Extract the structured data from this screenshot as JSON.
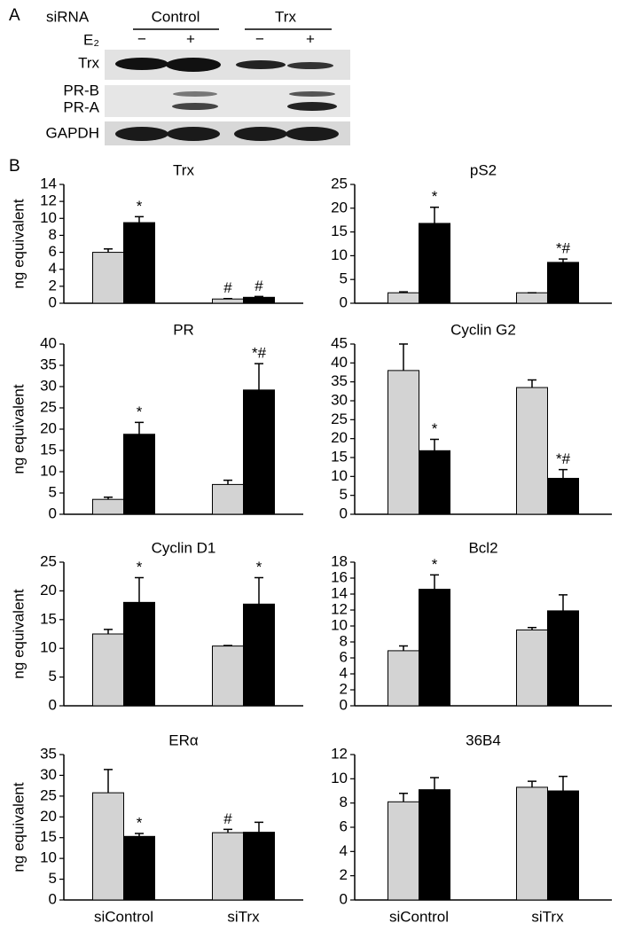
{
  "panels": [
    "A",
    "B"
  ],
  "blot": {
    "row_header": "siRNA",
    "groups": [
      "Control",
      "Trx"
    ],
    "treatment": "E₂",
    "signs": [
      "−",
      "+",
      "−",
      "+"
    ],
    "rows": [
      "Trx",
      "PR-B",
      "PR-A",
      "GAPDH"
    ]
  },
  "chart_data": [
    {
      "type": "bar",
      "title": "Trx",
      "ylabel": "ng equivalent",
      "categories": [
        null,
        null
      ],
      "ylim": [
        0,
        14
      ],
      "yticks": [
        0,
        2,
        4,
        6,
        8,
        10,
        12,
        14
      ],
      "series": [
        {
          "color": "#d3d3d3",
          "values": [
            6.0,
            0.5
          ],
          "errors": [
            0.4,
            0.05
          ],
          "annotations": [
            null,
            "#"
          ]
        },
        {
          "color": "#000000",
          "values": [
            9.5,
            0.7
          ],
          "errors": [
            0.7,
            0.1
          ],
          "annotations": [
            "*",
            "#"
          ]
        }
      ]
    },
    {
      "type": "bar",
      "title": "pS2",
      "categories": [
        null,
        null
      ],
      "ylim": [
        0,
        25
      ],
      "yticks": [
        0,
        5,
        10,
        15,
        20,
        25
      ],
      "series": [
        {
          "color": "#d3d3d3",
          "values": [
            2.2,
            2.2
          ],
          "errors": [
            0.2,
            0
          ],
          "annotations": [
            null,
            null
          ]
        },
        {
          "color": "#000000",
          "values": [
            16.8,
            8.6
          ],
          "errors": [
            3.4,
            0.7
          ],
          "annotations": [
            "*",
            "*#"
          ]
        }
      ]
    },
    {
      "type": "bar",
      "title": "PR",
      "ylabel": "ng equivalent",
      "categories": [
        null,
        null
      ],
      "ylim": [
        0,
        40
      ],
      "yticks": [
        0,
        5,
        10,
        15,
        20,
        25,
        30,
        35,
        40
      ],
      "series": [
        {
          "color": "#d3d3d3",
          "values": [
            3.5,
            7.0
          ],
          "errors": [
            0.5,
            1.0
          ],
          "annotations": [
            null,
            null
          ]
        },
        {
          "color": "#000000",
          "values": [
            18.8,
            29.2
          ],
          "errors": [
            2.8,
            6.2
          ],
          "annotations": [
            "*",
            "*#"
          ]
        }
      ]
    },
    {
      "type": "bar",
      "title": "Cyclin G2",
      "categories": [
        null,
        null
      ],
      "ylim": [
        0,
        45
      ],
      "yticks": [
        0,
        5,
        10,
        15,
        20,
        25,
        30,
        35,
        40,
        45
      ],
      "series": [
        {
          "color": "#d3d3d3",
          "values": [
            38.0,
            33.5
          ],
          "errors": [
            7.0,
            2.0
          ],
          "annotations": [
            null,
            null
          ]
        },
        {
          "color": "#000000",
          "values": [
            16.8,
            9.5
          ],
          "errors": [
            3.0,
            2.3
          ],
          "annotations": [
            "*",
            "*#"
          ]
        }
      ]
    },
    {
      "type": "bar",
      "title": "Cyclin D1",
      "ylabel": "ng equivalent",
      "categories": [
        null,
        null
      ],
      "ylim": [
        0,
        25
      ],
      "yticks": [
        0,
        5,
        10,
        15,
        20,
        25
      ],
      "series": [
        {
          "color": "#d3d3d3",
          "values": [
            12.5,
            10.4
          ],
          "errors": [
            0.8,
            0.1
          ],
          "annotations": [
            null,
            null
          ]
        },
        {
          "color": "#000000",
          "values": [
            18.0,
            17.7
          ],
          "errors": [
            4.3,
            4.6
          ],
          "annotations": [
            "*",
            "*"
          ]
        }
      ]
    },
    {
      "type": "bar",
      "title": "Bcl2",
      "categories": [
        null,
        null
      ],
      "ylim": [
        0,
        18
      ],
      "yticks": [
        0,
        2,
        4,
        6,
        8,
        10,
        12,
        14,
        16,
        18
      ],
      "series": [
        {
          "color": "#d3d3d3",
          "values": [
            6.9,
            9.5
          ],
          "errors": [
            0.6,
            0.3
          ],
          "annotations": [
            null,
            null
          ]
        },
        {
          "color": "#000000",
          "values": [
            14.6,
            11.9
          ],
          "errors": [
            1.8,
            2.0
          ],
          "annotations": [
            "*",
            null
          ]
        }
      ]
    },
    {
      "type": "bar",
      "title": "ERα",
      "ylabel": "ng equivalent",
      "categories": [
        "siControl",
        "siTrx"
      ],
      "ylim": [
        0,
        35
      ],
      "yticks": [
        0,
        5,
        10,
        15,
        20,
        25,
        30,
        35
      ],
      "series": [
        {
          "color": "#d3d3d3",
          "values": [
            25.8,
            16.2
          ],
          "errors": [
            5.6,
            0.8
          ],
          "annotations": [
            null,
            "#"
          ]
        },
        {
          "color": "#000000",
          "values": [
            15.3,
            16.3
          ],
          "errors": [
            0.7,
            2.4
          ],
          "annotations": [
            "*",
            null
          ]
        }
      ]
    },
    {
      "type": "bar",
      "title": "36B4",
      "categories": [
        "siControl",
        "siTrx"
      ],
      "ylim": [
        0,
        12
      ],
      "yticks": [
        0,
        2,
        4,
        6,
        8,
        10,
        12
      ],
      "series": [
        {
          "color": "#d3d3d3",
          "values": [
            8.1,
            9.3
          ],
          "errors": [
            0.7,
            0.5
          ],
          "annotations": [
            null,
            null
          ]
        },
        {
          "color": "#000000",
          "values": [
            9.1,
            9.0
          ],
          "errors": [
            1.0,
            1.2
          ],
          "annotations": [
            null,
            null
          ]
        }
      ]
    }
  ]
}
